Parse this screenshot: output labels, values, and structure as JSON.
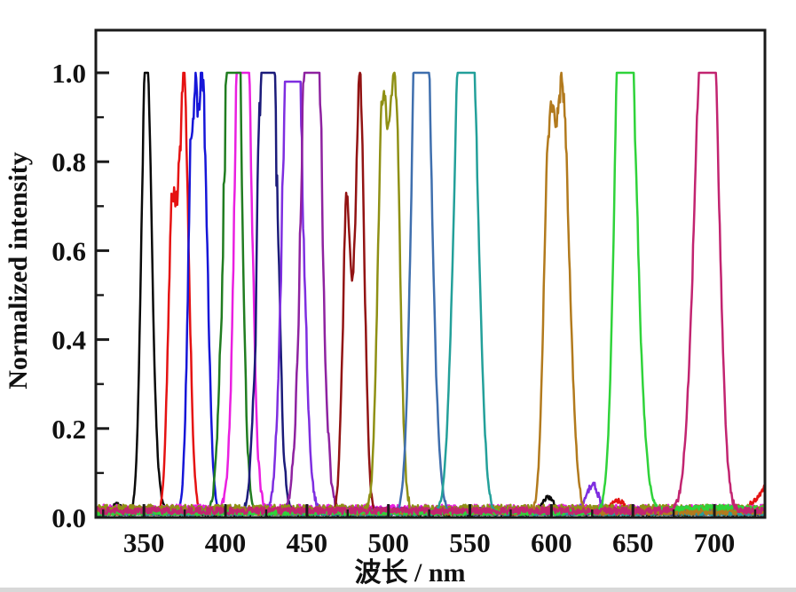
{
  "figure": {
    "background": "#ffffff",
    "frame_color": "#1a1a1a"
  },
  "chart_data": {
    "type": "line",
    "title": "",
    "xlabel": "波长 / nm",
    "ylabel": "Normalized intensity",
    "xlim": [
      320.5,
      731
    ],
    "ylim": [
      0,
      1.095
    ],
    "grid": false,
    "legend": "none",
    "frame_color": "#1a1a1a",
    "x_ticks_major": {
      "values": [
        350,
        400,
        450,
        500,
        550,
        600,
        650,
        700
      ],
      "labels": [
        "350",
        "400",
        "450",
        "500",
        "550",
        "600",
        "650",
        "700"
      ]
    },
    "x_ticks_minor": [
      325,
      375,
      425,
      475,
      525,
      575,
      625,
      675,
      725
    ],
    "y_ticks_major": {
      "values": [
        0,
        0.2,
        0.4,
        0.6,
        0.8,
        1.0
      ],
      "labels": [
        "0.0",
        "0.2",
        "0.4",
        "0.6",
        "0.8",
        "1.0"
      ]
    },
    "y_ticks_minor": [
      0.1,
      0.3,
      0.5,
      0.7,
      0.9
    ],
    "series": [
      {
        "name": "peak-351nm",
        "color": "#0a0a0a",
        "peak_nm": 351.3,
        "fwhm_nm": 11,
        "peak_max": 1.0,
        "components": [
          [
            351.3,
            2.9,
            1.0
          ],
          [
            354.5,
            3.5,
            0.18
          ],
          [
            333,
            3,
            0.022
          ],
          [
            598,
            3.5,
            0.038
          ]
        ],
        "jitter": 0.02,
        "baseline": 0.01,
        "seed": 11
      },
      {
        "name": "peak-375nm",
        "color": "#e51212",
        "peak_nm": 374.6,
        "fwhm_nm": 13,
        "peak_max": 1.0,
        "components": [
          [
            367.5,
            2.6,
            0.72
          ],
          [
            374.6,
            3.0,
            1.0
          ],
          [
            641,
            4,
            0.026
          ],
          [
            737,
            9,
            0.07
          ]
        ],
        "jitter": 0.05,
        "baseline": 0.013,
        "seed": 22
      },
      {
        "name": "peak-386nm",
        "color": "#1616d8",
        "peak_nm": 385.8,
        "fwhm_nm": 13,
        "peak_max": 1.0,
        "components": [
          [
            379.5,
            2.6,
            0.78
          ],
          [
            385.8,
            3.2,
            1.0
          ]
        ],
        "jitter": 0.07,
        "baseline": 0.013,
        "seed": 33
      },
      {
        "name": "peak-410nm",
        "color": "#ea1fe0",
        "peak_nm": 410.5,
        "fwhm_nm": 14,
        "peak_max": 1.0,
        "components": [
          [
            409,
            3.6,
            1.0
          ],
          [
            413,
            3.6,
            0.9
          ]
        ],
        "jitter": 0.06,
        "baseline": 0.02,
        "seed": 44
      },
      {
        "name": "peak-405nm",
        "color": "#217d21",
        "peak_nm": 405,
        "fwhm_nm": 15,
        "peak_max": 1.0,
        "components": [
          [
            402.5,
            4.2,
            0.92
          ],
          [
            406.5,
            3.6,
            1.0
          ]
        ],
        "jitter": 0.1,
        "baseline": 0.01,
        "seed": 55
      },
      {
        "name": "peak-427nm",
        "color": "#1b1b7a",
        "peak_nm": 427,
        "fwhm_nm": 15,
        "peak_max": 1.0,
        "components": [
          [
            423.5,
            4.0,
            0.88
          ],
          [
            428,
            4.0,
            1.0
          ]
        ],
        "jitter": 0.1,
        "baseline": 0.012,
        "seed": 66
      },
      {
        "name": "peak-441nm",
        "color": "#7e2ee0",
        "peak_nm": 441,
        "fwhm_nm": 15,
        "peak_max": 0.98,
        "components": [
          [
            439,
            4.2,
            0.96
          ],
          [
            444,
            4.2,
            0.9
          ],
          [
            625,
            3.5,
            0.062
          ]
        ],
        "jitter": 0.09,
        "baseline": 0.016,
        "seed": 77
      },
      {
        "name": "peak-452nm",
        "color": "#8e22a0",
        "peak_nm": 452,
        "fwhm_nm": 16,
        "peak_max": 1.0,
        "components": [
          [
            450,
            4.2,
            0.9
          ],
          [
            455.5,
            4.2,
            1.0
          ]
        ],
        "jitter": 0.1,
        "baseline": 0.016,
        "seed": 88
      },
      {
        "name": "peak-483nm",
        "color": "#921313",
        "peak_nm": 482.5,
        "fwhm_nm": 12,
        "peak_max": 1.0,
        "components": [
          [
            474.5,
            2.6,
            0.7
          ],
          [
            482.5,
            2.8,
            1.0
          ]
        ],
        "jitter": 0.05,
        "baseline": 0.012,
        "seed": 99
      },
      {
        "name": "peak-501nm",
        "color": "#8f9014",
        "peak_nm": 501,
        "fwhm_nm": 16,
        "peak_max": 1.0,
        "components": [
          [
            496.5,
            3.0,
            0.95
          ],
          [
            504,
            3.0,
            1.0
          ]
        ],
        "jitter": 0.025,
        "baseline": 0.02,
        "seed": 110
      },
      {
        "name": "peak-521nm",
        "color": "#3f6fae",
        "peak_nm": 521,
        "fwhm_nm": 17,
        "peak_max": 1.0,
        "components": [
          [
            518,
            4.0,
            0.93
          ],
          [
            522.5,
            4.5,
            1.0
          ]
        ],
        "jitter": 0.03,
        "baseline": 0.011,
        "seed": 121
      },
      {
        "name": "peak-548nm",
        "color": "#23a09a",
        "peak_nm": 548,
        "fwhm_nm": 21,
        "peak_max": 1.0,
        "components": [
          [
            544,
            4.5,
            0.97
          ],
          [
            551,
            4.5,
            1.0
          ]
        ],
        "jitter": 0.025,
        "baseline": 0.01,
        "seed": 132
      },
      {
        "name": "peak-605nm",
        "color": "#b27a1d",
        "peak_nm": 605.5,
        "fwhm_nm": 21,
        "peak_max": 1.0,
        "components": [
          [
            598,
            3.0,
            0.72
          ],
          [
            606.5,
            4.5,
            1.0
          ]
        ],
        "jitter": 0.035,
        "baseline": 0.013,
        "seed": 143
      },
      {
        "name": "peak-646nm",
        "color": "#2fd33a",
        "peak_nm": 646,
        "fwhm_nm": 20,
        "peak_max": 1.0,
        "components": [
          [
            643,
            4.0,
            0.9
          ],
          [
            647.5,
            5.5,
            1.0
          ],
          [
            703,
            30,
            0.012
          ]
        ],
        "jitter": 0.03,
        "baseline": 0.012,
        "seed": 154
      },
      {
        "name": "peak-694nm",
        "color": "#c22470",
        "peak_nm": 693.5,
        "fwhm_nm": 22,
        "peak_max": 1.0,
        "components": [
          [
            692.5,
            5.5,
            1.0
          ],
          [
            699,
            4.5,
            0.82
          ]
        ],
        "jitter": 0.03,
        "baseline": 0.016,
        "seed": 165
      }
    ]
  }
}
